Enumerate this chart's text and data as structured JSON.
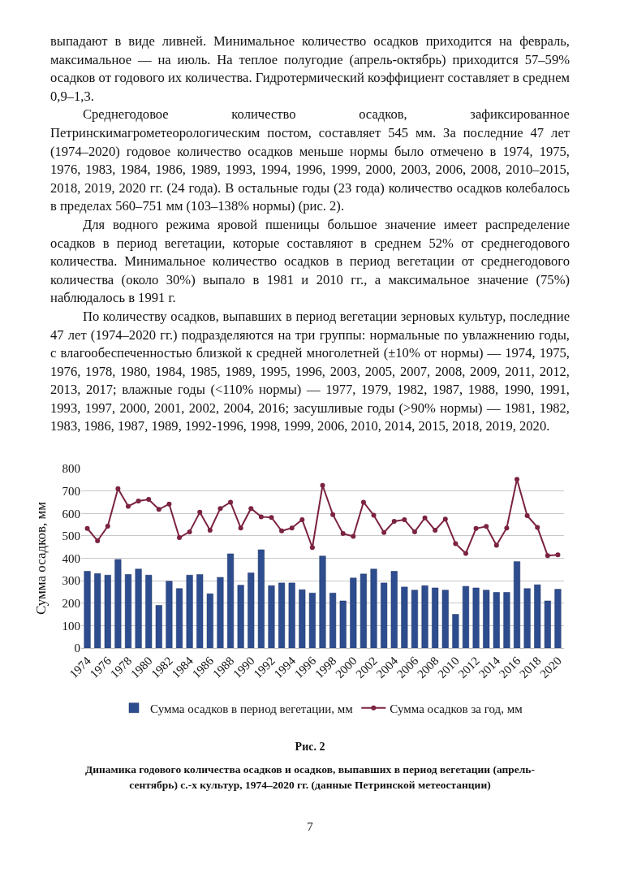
{
  "chart_data": {
    "type": "bar",
    "title": "Рис. 2",
    "subtitle": "Динамика годового количества осадков и осадков, выпавших в период вегетации (апрель-сентябрь) с.-х культур, 1974–2020 гг. (данные Петринской метеостанции)",
    "ylabel": "Сумма осадков, мм",
    "annotations": [
      "выпадают в виде ливней. Минимальное количество осадков приходится на февраль, максимальное — на июль. На теплое полугодие (апрель-октябрь) приходится 57–59% осадков от годового их количества. Гидротермический коэффициент составляет в среднем 0,9–1,3.",
      "Среднегодовое количество осадков, зафиксированное Петринскимагрометеорологическим постом, составляет 545 мм. За последние 47 лет (1974–2020) годовое количество осадков меньше нормы было отмечено в 1974, 1975, 1976, 1983, 1984, 1986, 1989, 1993, 1994, 1996, 1999, 2000, 2003, 2006, 2008, 2010–2015, 2018, 2019, 2020 гг. (24 года). В остальные годы (23 года) количество осадков колебалось в пределах 560–751 мм (103–138% нормы) (рис. 2).",
      "Для водного режима яровой пшеницы большое значение имеет распределение осадков в период вегетации, которые составляют в среднем 52% от среднегодового количества. Минимальное количество осадков в период вегетации от среднегодового количества (около 30%) выпало в 1981 и 2010 гг., а максимальное значение (75%) наблюдалось в 1991 г.",
      "По количеству осадков, выпавших в период вегетации зерновых культур, последние 47 лет (1974–2020 гг.) подразделяются на три группы: нормальные по увлажнению годы, с влагообеспеченностью близкой к средней многолетней (±10% от нормы) — 1974, 1975, 1976, 1978, 1980, 1984, 1985, 1989, 1995, 1996, 2003, 2005, 2007, 2008, 2009, 2011, 2012, 2013, 2017; влажные годы (<110% нормы) — 1977, 1979, 1982, 1987, 1988, 1990, 1991, 1993, 1997, 2000, 2001, 2002, 2004, 2016; засушливые годы (>90% нормы) — 1981, 1982, 1983, 1986, 1987, 1989, 1992-1996, 1998, 1999, 2006, 2010, 2014, 2015, 2018, 2019, 2020.",
      "7"
    ],
    "categories": [
      "1974",
      null,
      "1976",
      null,
      "1978",
      null,
      "1980",
      null,
      "1982",
      null,
      "1984",
      null,
      "1986",
      null,
      "1988",
      null,
      "1990",
      null,
      "1992",
      null,
      "1994",
      null,
      "1996",
      null,
      "1998",
      null,
      "2000",
      null,
      "2002",
      null,
      "2004",
      null,
      "2006",
      null,
      "2008",
      null,
      "2010",
      null,
      "2012",
      null,
      "2014",
      null,
      "2016",
      null,
      "2018",
      null,
      "2020"
    ],
    "series": [
      {
        "name": "Сумма осадков в период вегетации, мм",
        "color": "#2e4d8f",
        "values": [
          342,
          332,
          325,
          395,
          328,
          352,
          325,
          190,
          298,
          265,
          325,
          328,
          242,
          315,
          420,
          280,
          335,
          438,
          278,
          290,
          290,
          260,
          245,
          410,
          245,
          210,
          312,
          330,
          352,
          290,
          342,
          272,
          258,
          278,
          268,
          258,
          150,
          275,
          268,
          258,
          248,
          248,
          385,
          265,
          282,
          210,
          262
        ]
      },
      {
        "name": "Сумма осадков за год, мм",
        "type": "line",
        "color": "#7b2340",
        "values": [
          533,
          478,
          543,
          710,
          632,
          655,
          662,
          618,
          642,
          492,
          518,
          605,
          525,
          622,
          650,
          535,
          622,
          585,
          582,
          522,
          535,
          572,
          448,
          725,
          595,
          510,
          498,
          650,
          592,
          515,
          565,
          572,
          518,
          580,
          525,
          575,
          465,
          422,
          533,
          542,
          458,
          535,
          752,
          590,
          538,
          412,
          415
        ]
      }
    ],
    "ylim": [
      0,
      800
    ],
    "yticks": [
      0,
      100,
      200,
      300,
      400,
      500,
      600,
      700,
      800
    ],
    "grid": "y",
    "legend": "bottom",
    "marker": "circle",
    "line_style": "solid"
  }
}
